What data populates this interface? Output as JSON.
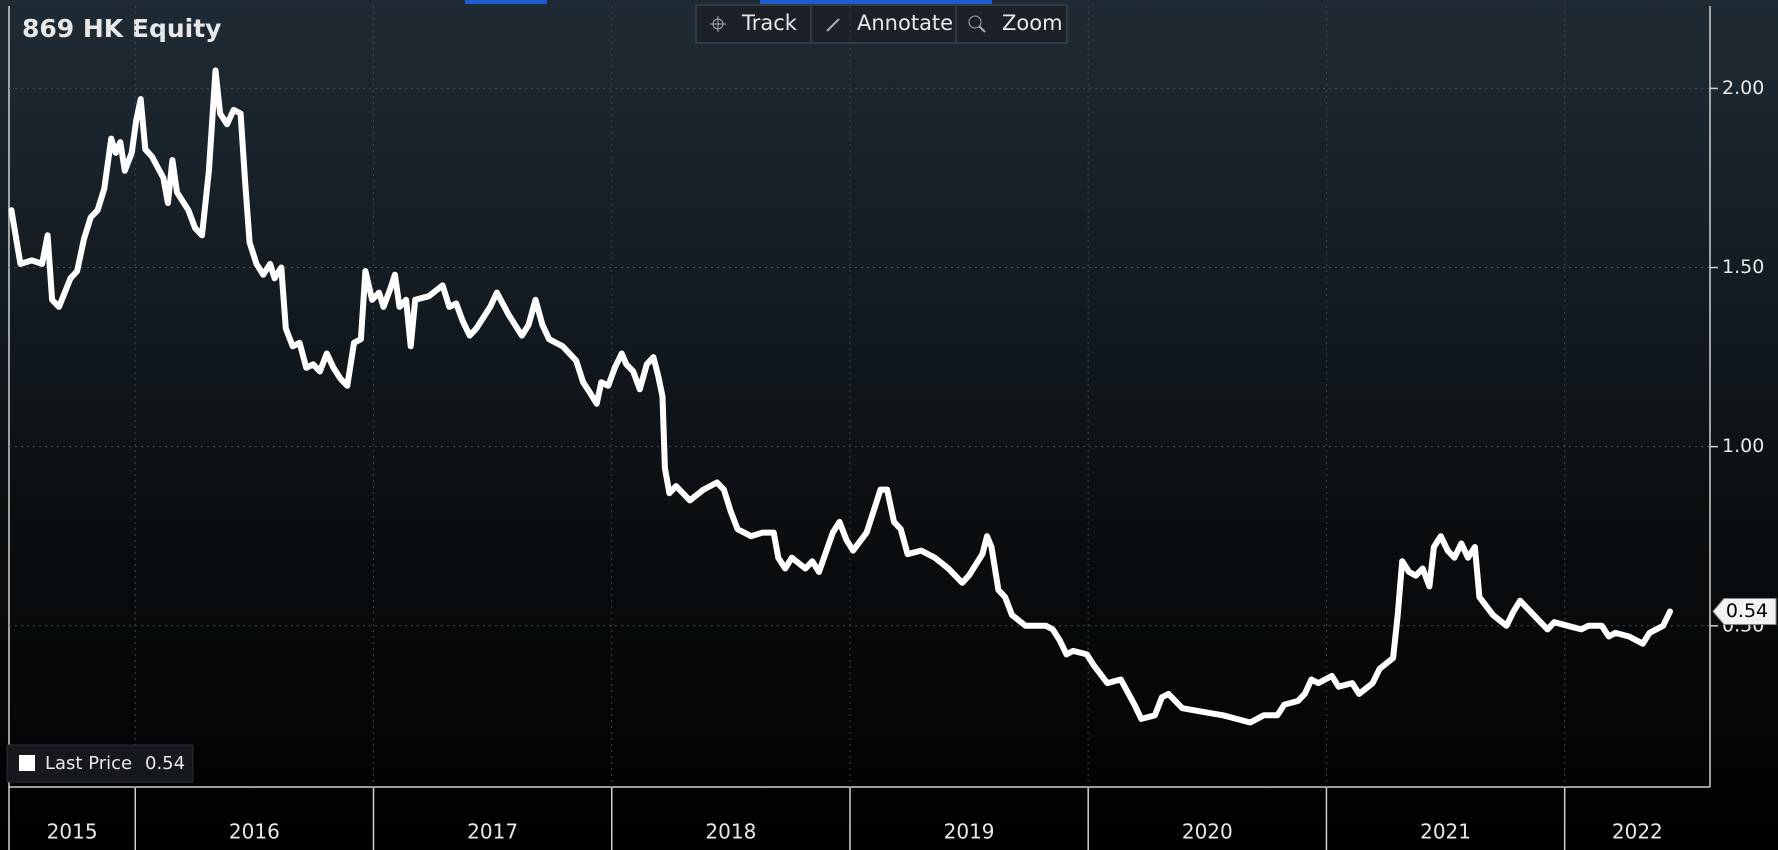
{
  "toolbar": [
    "Track",
    "Annotate",
    "Zoom"
  ],
  "chart_data": {
    "type": "line",
    "title": "869 HK Equity",
    "x": [
      2015.48,
      2015.518,
      2015.566,
      2015.609,
      2015.632,
      2015.651,
      2015.68,
      2015.728,
      2015.756,
      2015.785,
      2015.813,
      2015.842,
      2015.87,
      2015.899,
      2015.918,
      2015.937,
      2015.956,
      2015.985,
      2016.004,
      2016.023,
      2016.042,
      2016.07,
      2016.118,
      2016.137,
      2016.156,
      2016.175,
      2016.223,
      2016.251,
      2016.28,
      2016.309,
      2016.337,
      2016.356,
      2016.385,
      2016.413,
      2016.442,
      2016.461,
      2016.48,
      2016.509,
      2016.537,
      2016.566,
      2016.585,
      2016.613,
      2016.632,
      2016.661,
      2016.69,
      2016.718,
      2016.747,
      2016.775,
      2016.804,
      2016.832,
      2016.861,
      2016.89,
      2016.918,
      2016.947,
      2016.966,
      2016.994,
      2017.023,
      2017.042,
      2017.07,
      2017.09,
      2017.109,
      2017.137,
      2017.156,
      2017.175,
      2017.232,
      2017.29,
      2017.318,
      2017.347,
      2017.375,
      2017.404,
      2017.432,
      2017.49,
      2017.518,
      2017.566,
      2017.594,
      2017.623,
      2017.651,
      2017.68,
      2017.709,
      2017.737,
      2017.794,
      2017.851,
      2017.88,
      2017.909,
      2017.937,
      2017.956,
      2017.985,
      2018.013,
      2018.042,
      2018.061,
      2018.09,
      2018.118,
      2018.147,
      2018.175,
      2018.194,
      2018.213,
      2018.223,
      2018.242,
      2018.27,
      2018.328,
      2018.385,
      2018.442,
      2018.471,
      2018.499,
      2018.528,
      2018.585,
      2018.633,
      2018.68,
      2018.699,
      2018.728,
      2018.756,
      2018.813,
      2018.842,
      2018.87,
      2018.928,
      2018.956,
      2018.985,
      2019.013,
      2019.07,
      2019.099,
      2019.128,
      2019.156,
      2019.185,
      2019.213,
      2019.242,
      2019.299,
      2019.356,
      2019.413,
      2019.471,
      2019.499,
      2019.556,
      2019.575,
      2019.594,
      2019.623,
      2019.651,
      2019.68,
      2019.737,
      2019.823,
      2019.851,
      2019.88,
      2019.909,
      2019.937,
      2019.994,
      2020.023,
      2020.08,
      2020.137,
      2020.194,
      2020.223,
      2020.28,
      2020.309,
      2020.337,
      2020.395,
      2020.48,
      2020.566,
      2020.623,
      2020.68,
      2020.737,
      2020.794,
      2020.823,
      2020.88,
      2020.909,
      2020.937,
      2020.966,
      2021.023,
      2021.051,
      2021.108,
      2021.137,
      2021.194,
      2021.223,
      2021.28,
      2021.299,
      2021.318,
      2021.347,
      2021.375,
      2021.404,
      2021.432,
      2021.451,
      2021.48,
      2021.509,
      2021.537,
      2021.566,
      2021.594,
      2021.623,
      2021.642,
      2021.699,
      2021.756,
      2021.785,
      2021.813,
      2021.87,
      2021.928,
      2021.956,
      2022.013,
      2022.07,
      2022.099,
      2022.156,
      2022.185,
      2022.213,
      2022.27,
      2022.328,
      2022.356,
      2022.413,
      2022.442
    ],
    "series": [
      {
        "name": "Last Price",
        "color": "#ffffff",
        "values": [
          1.66,
          1.51,
          1.52,
          1.51,
          1.59,
          1.41,
          1.39,
          1.47,
          1.49,
          1.58,
          1.64,
          1.66,
          1.72,
          1.86,
          1.82,
          1.85,
          1.77,
          1.82,
          1.91,
          1.97,
          1.83,
          1.81,
          1.75,
          1.68,
          1.8,
          1.71,
          1.66,
          1.61,
          1.59,
          1.77,
          2.05,
          1.93,
          1.9,
          1.94,
          1.93,
          1.74,
          1.57,
          1.51,
          1.48,
          1.51,
          1.47,
          1.5,
          1.33,
          1.28,
          1.29,
          1.22,
          1.23,
          1.21,
          1.26,
          1.22,
          1.19,
          1.17,
          1.29,
          1.3,
          1.49,
          1.41,
          1.43,
          1.39,
          1.44,
          1.48,
          1.39,
          1.41,
          1.28,
          1.41,
          1.42,
          1.45,
          1.39,
          1.4,
          1.35,
          1.31,
          1.33,
          1.39,
          1.43,
          1.37,
          1.34,
          1.31,
          1.34,
          1.41,
          1.34,
          1.3,
          1.28,
          1.24,
          1.18,
          1.15,
          1.12,
          1.18,
          1.17,
          1.22,
          1.26,
          1.23,
          1.21,
          1.16,
          1.23,
          1.25,
          1.2,
          1.14,
          0.94,
          0.87,
          0.89,
          0.85,
          0.88,
          0.9,
          0.88,
          0.82,
          0.77,
          0.75,
          0.76,
          0.76,
          0.69,
          0.66,
          0.69,
          0.66,
          0.68,
          0.65,
          0.76,
          0.79,
          0.74,
          0.71,
          0.76,
          0.82,
          0.88,
          0.88,
          0.79,
          0.77,
          0.7,
          0.71,
          0.69,
          0.66,
          0.62,
          0.64,
          0.7,
          0.75,
          0.72,
          0.6,
          0.58,
          0.53,
          0.5,
          0.5,
          0.49,
          0.46,
          0.42,
          0.43,
          0.42,
          0.39,
          0.34,
          0.35,
          0.28,
          0.24,
          0.25,
          0.3,
          0.31,
          0.27,
          0.26,
          0.25,
          0.24,
          0.23,
          0.25,
          0.25,
          0.28,
          0.29,
          0.31,
          0.35,
          0.34,
          0.36,
          0.33,
          0.34,
          0.31,
          0.34,
          0.38,
          0.41,
          0.53,
          0.68,
          0.65,
          0.64,
          0.66,
          0.61,
          0.72,
          0.75,
          0.71,
          0.69,
          0.73,
          0.69,
          0.72,
          0.58,
          0.53,
          0.5,
          0.54,
          0.57,
          0.53,
          0.49,
          0.51,
          0.5,
          0.49,
          0.5,
          0.5,
          0.47,
          0.48,
          0.47,
          0.45,
          0.48,
          0.5,
          0.54
        ]
      }
    ],
    "xlim": [
      2015.47,
      2022.61
    ],
    "xticks": [
      2015,
      2016,
      2017,
      2018,
      2019,
      2020,
      2021,
      2022
    ],
    "ylim": [
      0.05,
      2.23
    ],
    "yticks": [
      {
        "value": 0.5,
        "label": "0.50"
      },
      {
        "value": 1,
        "label": "1.00"
      },
      {
        "value": 1.5,
        "label": "1.50"
      },
      {
        "value": 2,
        "label": "2.00"
      }
    ],
    "grid": true
  }
}
